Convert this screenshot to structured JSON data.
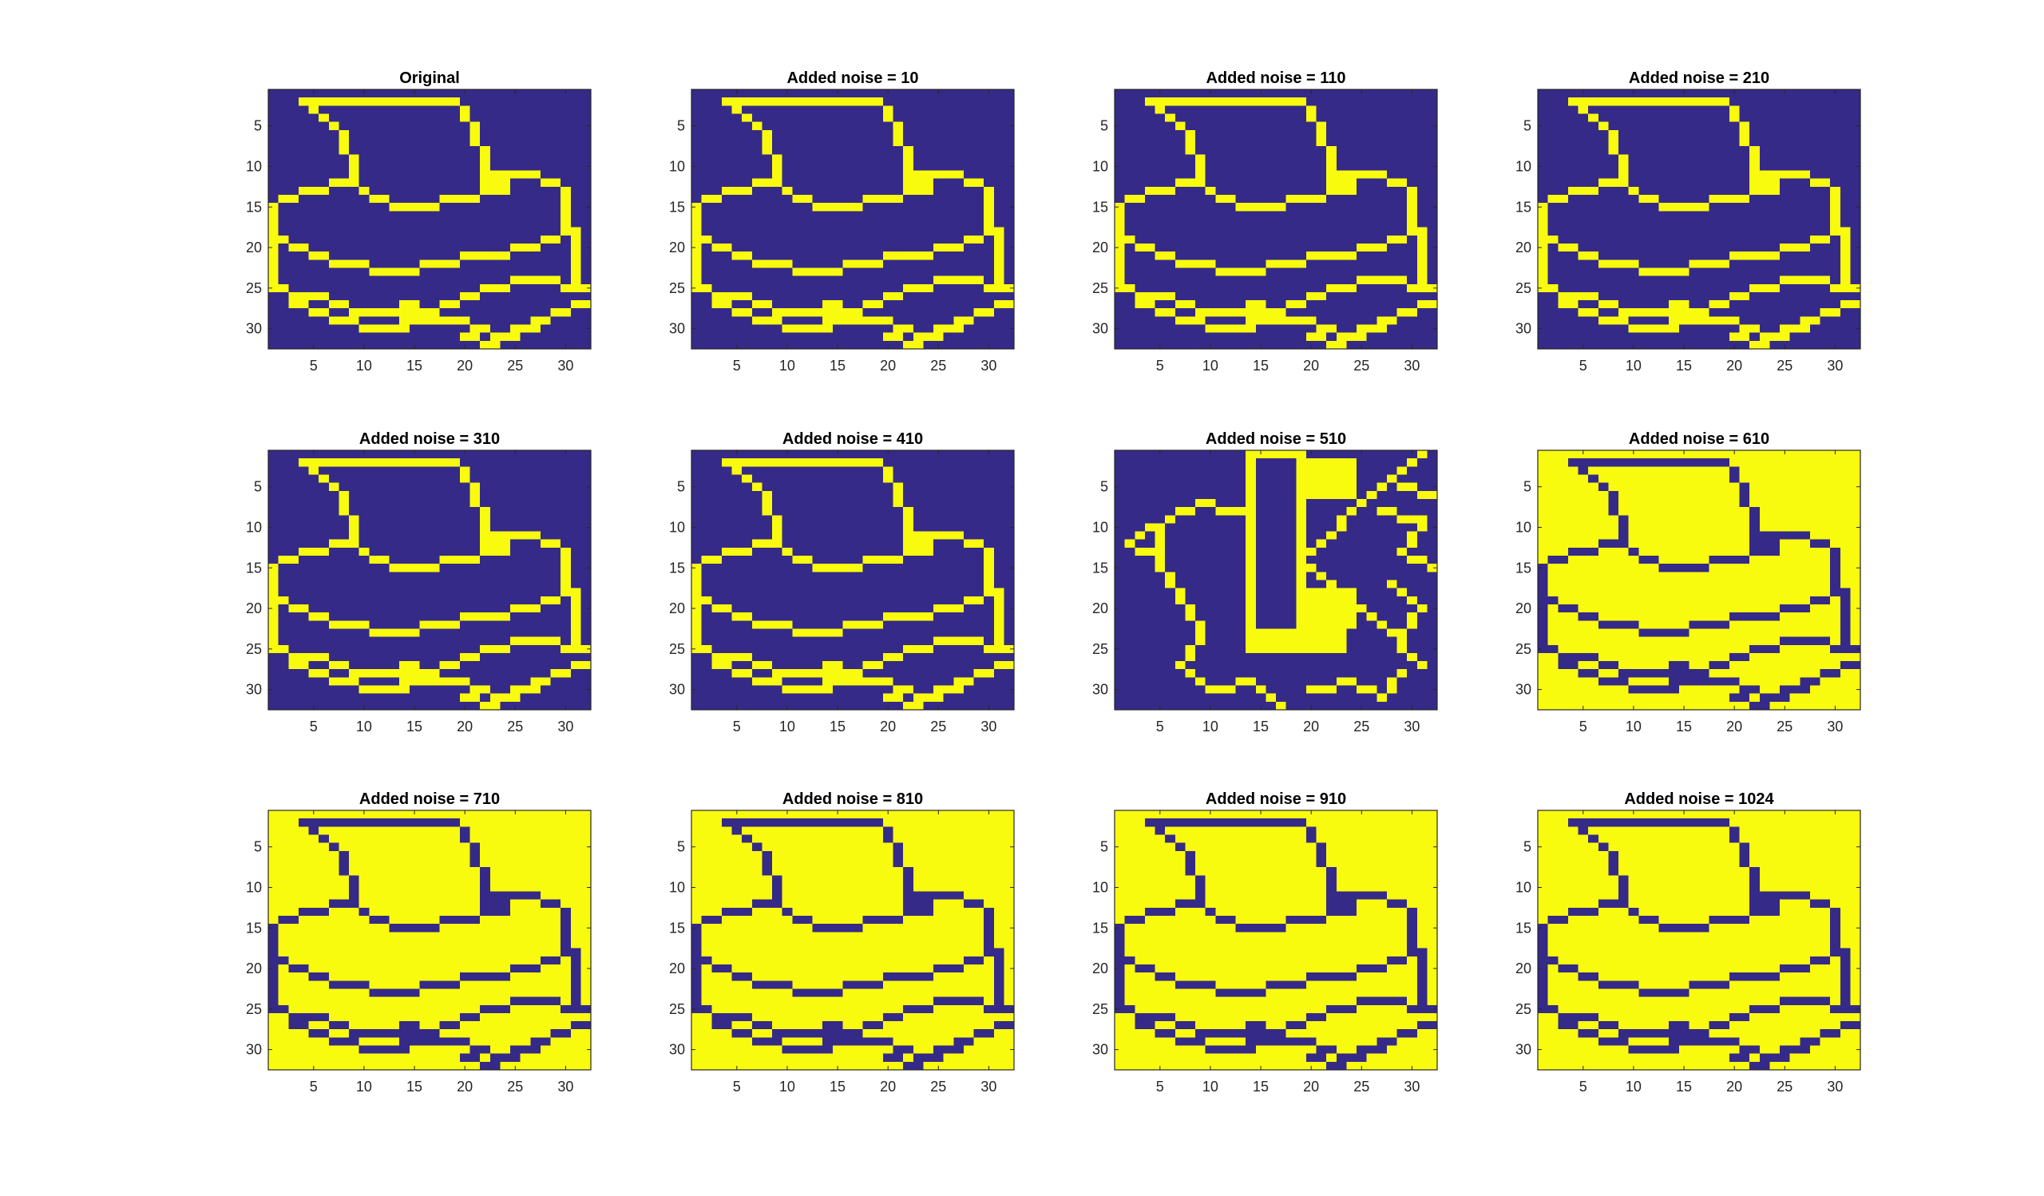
{
  "figure": {
    "rows": 3,
    "cols": 4,
    "colormap": "parula-binary",
    "colors": {
      "low": "#352a87",
      "high": "#f9fb0e",
      "axis": "#262626",
      "title": "#000000",
      "background": "#ffffff"
    }
  },
  "chart_data": [
    {
      "type": "heatmap",
      "title": "Original",
      "noise": 0,
      "inverted": false,
      "alt": false
    },
    {
      "type": "heatmap",
      "title": "Added noise = 10",
      "noise": 10,
      "inverted": false,
      "alt": false
    },
    {
      "type": "heatmap",
      "title": "Added noise = 110",
      "noise": 110,
      "inverted": false,
      "alt": false
    },
    {
      "type": "heatmap",
      "title": "Added noise = 210",
      "noise": 210,
      "inverted": false,
      "alt": false
    },
    {
      "type": "heatmap",
      "title": "Added noise = 310",
      "noise": 310,
      "inverted": false,
      "alt": false
    },
    {
      "type": "heatmap",
      "title": "Added noise = 410",
      "noise": 410,
      "inverted": false,
      "alt": false
    },
    {
      "type": "heatmap",
      "title": "Added noise = 510",
      "noise": 510,
      "inverted": false,
      "alt": true
    },
    {
      "type": "heatmap",
      "title": "Added noise = 610",
      "noise": 610,
      "inverted": true,
      "alt": false
    },
    {
      "type": "heatmap",
      "title": "Added noise = 710",
      "noise": 710,
      "inverted": true,
      "alt": false
    },
    {
      "type": "heatmap",
      "title": "Added noise = 810",
      "noise": 810,
      "inverted": true,
      "alt": false
    },
    {
      "type": "heatmap",
      "title": "Added noise = 910",
      "noise": 910,
      "inverted": true,
      "alt": false
    },
    {
      "type": "heatmap",
      "title": "Added noise = 1024",
      "noise": 1024,
      "inverted": true,
      "alt": false
    }
  ],
  "axes": {
    "xlim": [
      0.5,
      32.5
    ],
    "ylim": [
      0.5,
      32.5
    ],
    "y_reversed": true,
    "xticks": [
      5,
      10,
      15,
      20,
      25,
      30
    ],
    "yticks": [
      5,
      10,
      15,
      20,
      25,
      30
    ],
    "xtick_labels": [
      "5",
      "10",
      "15",
      "20",
      "25",
      "30"
    ],
    "ytick_labels": [
      "5",
      "10",
      "15",
      "20",
      "25",
      "30"
    ]
  }
}
